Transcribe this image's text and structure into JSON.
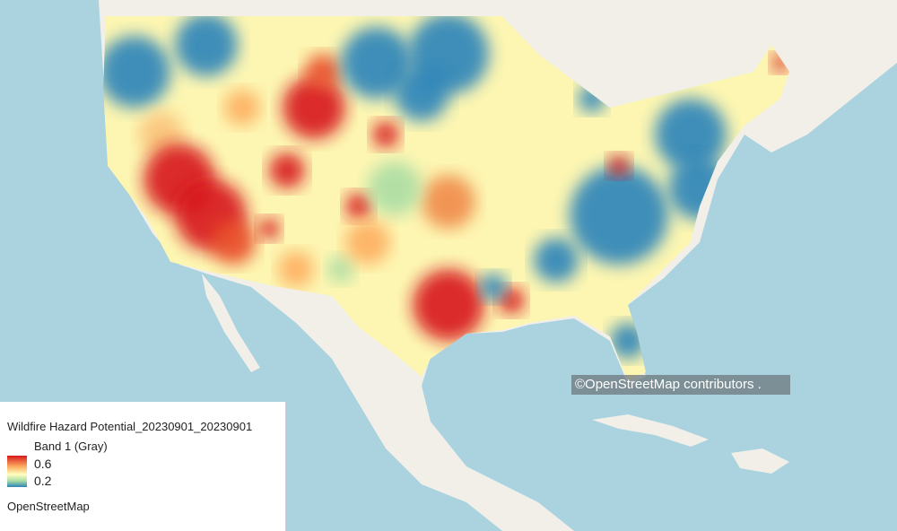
{
  "map": {
    "basemap": "OpenStreetMap",
    "attribution": "©OpenStreetMap contributors .",
    "colors": {
      "ocean": "#aad3df",
      "land": "#f2efe9",
      "high": "#d7191c",
      "mid": "#ffffbf",
      "low": "#2b83ba"
    }
  },
  "legend": {
    "layer_title": "Wildfire Hazard Potential_20230901_20230901",
    "band_label": "Band 1 (Gray)",
    "ramp_max": "0.6",
    "ramp_min": "0.2",
    "basemap_label": "OpenStreetMap"
  }
}
